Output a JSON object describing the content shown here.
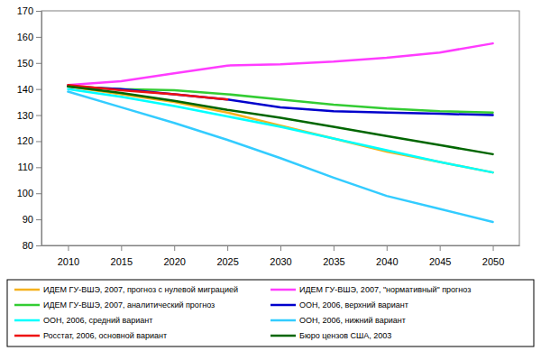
{
  "chart_data": {
    "type": "line",
    "categories": [
      "2010",
      "2015",
      "2020",
      "2025",
      "2030",
      "2035",
      "2040",
      "2045",
      "2050"
    ],
    "ylim": [
      80,
      170
    ],
    "yticks": [
      80,
      90,
      100,
      110,
      120,
      130,
      140,
      150,
      160,
      170
    ],
    "grid": false,
    "legend": "bottom",
    "series": [
      {
        "name": "ИДЕМ ГУ-ВШЭ, 2007, прогноз с нулевой миграцией",
        "color": "#f5b21e",
        "values": [
          141,
          138,
          135,
          131,
          126,
          121,
          116,
          112,
          108
        ]
      },
      {
        "name": "ИДЕМ ГУ-ВШЭ, 2007, \"нормативный\" прогноз",
        "color": "#ff3cff",
        "values": [
          141.5,
          143,
          146,
          149,
          149.5,
          150.5,
          152,
          154,
          157.5
        ]
      },
      {
        "name": "ИДЕМ ГУ-ВШЭ, 2007, аналитический прогноз",
        "color": "#33cc33",
        "values": [
          141,
          140,
          139.5,
          138,
          136,
          134,
          132.5,
          131.5,
          131
        ]
      },
      {
        "name": "ООН, 2006, верхний вариант",
        "color": "#0000cc",
        "values": [
          141,
          140,
          138,
          136,
          133,
          131.5,
          131,
          130.5,
          130
        ]
      },
      {
        "name": "ООН, 2006, средний вариант",
        "color": "#00ffff",
        "values": [
          140,
          137,
          133.5,
          129.5,
          125.5,
          121,
          116.5,
          112,
          108
        ]
      },
      {
        "name": "ООН, 2006, нижний вариант",
        "color": "#33ccff",
        "values": [
          139,
          133,
          127,
          120.5,
          113.5,
          106,
          99,
          94,
          89
        ]
      },
      {
        "name": "Росстат, 2006, основной вариант",
        "color": "#ee1111",
        "values": [
          141.5,
          139.5,
          138,
          136,
          null,
          null,
          null,
          null,
          null
        ]
      },
      {
        "name": "Бюро цензов США, 2003",
        "color": "#006600",
        "values": [
          141,
          138.5,
          135.5,
          132,
          129,
          125.5,
          122,
          118.5,
          115
        ]
      }
    ]
  }
}
